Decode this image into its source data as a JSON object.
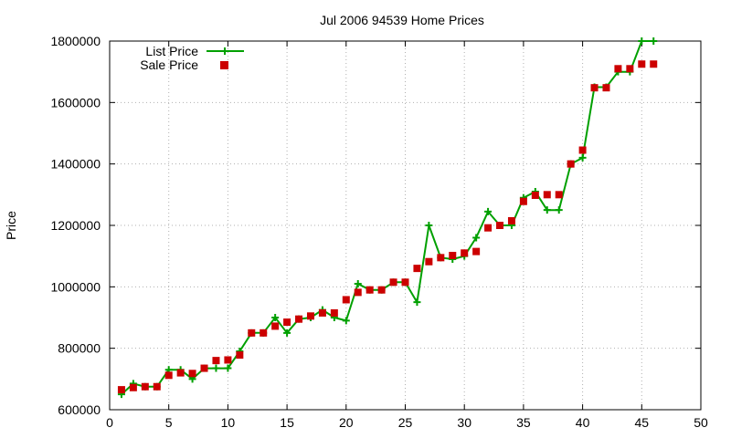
{
  "chart_data": {
    "type": "line",
    "title": "Jul 2006 94539 Home Prices",
    "xlabel": "",
    "ylabel": "Price",
    "xlim": [
      0,
      50
    ],
    "ylim": [
      600000,
      1800000
    ],
    "x_ticks": [
      0,
      5,
      10,
      15,
      20,
      25,
      30,
      35,
      40,
      45,
      50
    ],
    "y_ticks": [
      600000,
      800000,
      1000000,
      1200000,
      1400000,
      1600000,
      1800000
    ],
    "x_tick_labels": [
      "0",
      "5",
      "10",
      "15",
      "20",
      "25",
      "30",
      "35",
      "40",
      "45",
      "50"
    ],
    "y_tick_labels": [
      "600000",
      "800000",
      "1000000",
      "1200000",
      "1400000",
      "1600000",
      "1800000"
    ],
    "grid": true,
    "legend_position": "top-left",
    "series": [
      {
        "name": "List Price",
        "style": "line-with-plus-markers",
        "color": "#00a000",
        "x": [
          1,
          2,
          3,
          4,
          5,
          6,
          7,
          8,
          9,
          10,
          11,
          12,
          13,
          14,
          15,
          16,
          17,
          18,
          19,
          20,
          21,
          22,
          23,
          24,
          25,
          26,
          27,
          28,
          29,
          30,
          31,
          32,
          33,
          34,
          35,
          36,
          37,
          38,
          39,
          40,
          41,
          42,
          43,
          44,
          45,
          46
        ],
        "values": [
          650000,
          685000,
          675000,
          675000,
          730000,
          730000,
          700000,
          735000,
          735000,
          735000,
          790000,
          850000,
          850000,
          900000,
          850000,
          895000,
          900000,
          925000,
          900000,
          890000,
          1010000,
          990000,
          990000,
          1015000,
          1015000,
          950000,
          1200000,
          1095000,
          1090000,
          1100000,
          1160000,
          1245000,
          1200000,
          1200000,
          1290000,
          1310000,
          1250000,
          1250000,
          1400000,
          1420000,
          1650000,
          1650000,
          1700000,
          1700000,
          1800000,
          1800000
        ]
      },
      {
        "name": "Sale Price",
        "style": "square-markers",
        "color": "#cc0000",
        "x": [
          1,
          2,
          3,
          4,
          5,
          6,
          7,
          8,
          9,
          10,
          11,
          12,
          13,
          14,
          15,
          16,
          17,
          18,
          19,
          20,
          21,
          22,
          23,
          24,
          25,
          26,
          27,
          28,
          29,
          30,
          31,
          32,
          33,
          34,
          35,
          36,
          37,
          38,
          39,
          40,
          41,
          42,
          43,
          44,
          45,
          46
        ],
        "values": [
          665000,
          672000,
          675000,
          675000,
          712000,
          720000,
          718000,
          735000,
          760000,
          762000,
          778000,
          850000,
          850000,
          872000,
          885000,
          895000,
          905000,
          915000,
          915000,
          958000,
          982000,
          990000,
          990000,
          1015000,
          1015000,
          1060000,
          1082000,
          1095000,
          1102000,
          1110000,
          1115000,
          1192000,
          1200000,
          1215000,
          1278000,
          1298000,
          1300000,
          1300000,
          1400000,
          1445000,
          1648000,
          1648000,
          1710000,
          1710000,
          1725000,
          1725000
        ]
      }
    ]
  }
}
